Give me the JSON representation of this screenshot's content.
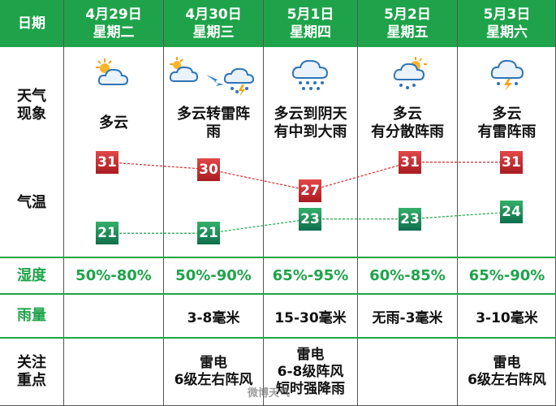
{
  "header": {
    "corner_label": "日期",
    "days": [
      {
        "date": "4月29日",
        "weekday": "星期二"
      },
      {
        "date": "4月30日",
        "weekday": "星期三"
      },
      {
        "date": "5月1日",
        "weekday": "星期四"
      },
      {
        "date": "5月2日",
        "weekday": "星期五"
      },
      {
        "date": "5月3日",
        "weekday": "星期六"
      }
    ]
  },
  "rows": {
    "weather_label": "天气\n现象",
    "temp_label": "气温",
    "humidity_label": "湿度",
    "rain_label": "雨量",
    "notice_label": "关注\n重点"
  },
  "weather": [
    {
      "text": "多云",
      "icon": "partly-cloudy-icon"
    },
    {
      "text": "多云转雷阵雨",
      "icon": "cloudy-to-thunderstorm-icon"
    },
    {
      "text": "多云到阴天有中到大雨",
      "icon": "rain-cloud-icon"
    },
    {
      "text": "多云有分散阵雨",
      "icon": "sun-cloud-rain-icon"
    },
    {
      "text": "多云有雷阵雨",
      "icon": "thunderstorm-icon"
    }
  ],
  "weather_lines": [
    [
      "多云"
    ],
    [
      "多云转雷阵",
      "雨"
    ],
    [
      "多云到阴天",
      "有中到大雨"
    ],
    [
      "多云",
      "有分散阵雨"
    ],
    [
      "多云",
      "有雷阵雨"
    ]
  ],
  "chart_data": {
    "type": "line",
    "categories": [
      "4月29日",
      "4月30日",
      "5月1日",
      "5月2日",
      "5月3日"
    ],
    "series": [
      {
        "values": [
          31,
          30,
          27,
          31,
          31
        ],
        "color": "#d9282e"
      },
      {
        "values": [
          21,
          21,
          23,
          23,
          24
        ],
        "color": "#1fa34a"
      }
    ],
    "ylim": [
      20,
      32
    ],
    "grid": false
  },
  "humidity": [
    "50%-80%",
    "50%-90%",
    "65%-95%",
    "60%-85%",
    "65%-90%"
  ],
  "rainfall": [
    "",
    "3-8毫米",
    "15-30毫米",
    "无雨-3毫米",
    "3-10毫米"
  ],
  "notices": [
    [],
    [
      "雷电",
      "6级左右阵风"
    ],
    [
      "雷电",
      "6-8级阵风",
      "短时强降雨"
    ],
    [],
    [
      "雷电",
      "6级左右阵风"
    ]
  ],
  "watermark": "微博天气",
  "colors": {
    "header_bg": "#1fa34a",
    "high": "#d9282e",
    "low": "#1fa34a"
  }
}
